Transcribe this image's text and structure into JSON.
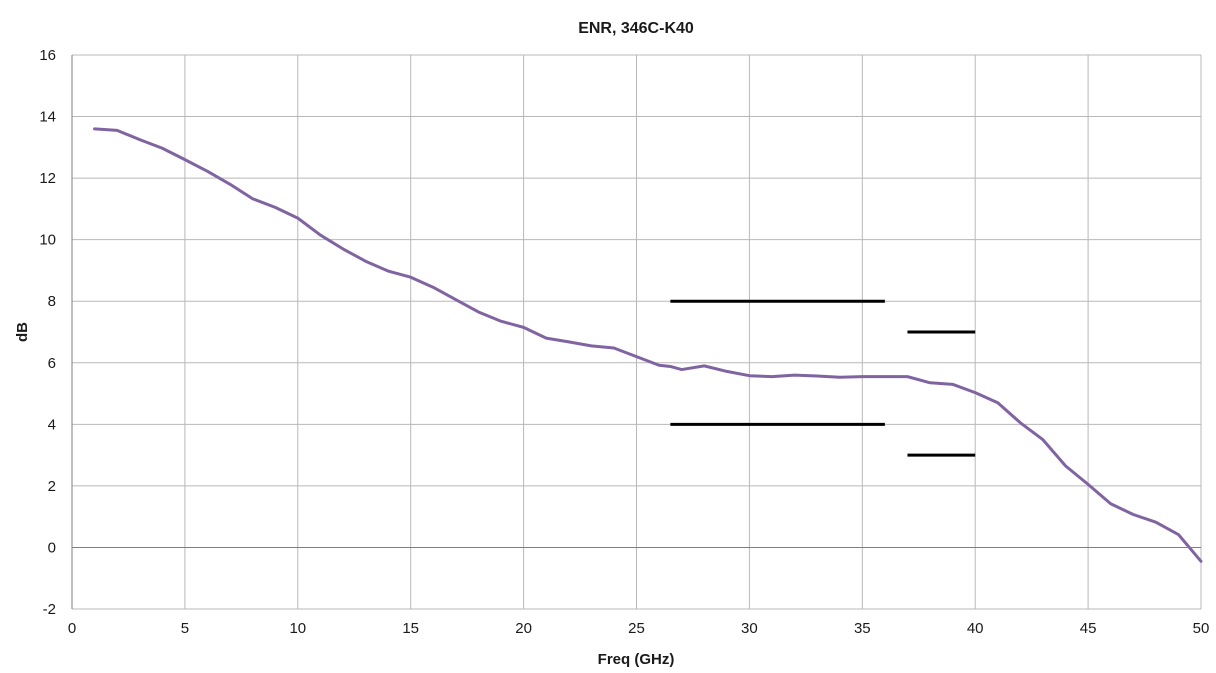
{
  "chart_data": {
    "type": "line",
    "title": "ENR, 346C-K40",
    "xlabel": "Freq (GHz)",
    "ylabel": "dB",
    "xlim": [
      0,
      50
    ],
    "ylim": [
      -2,
      16
    ],
    "x_ticks": [
      0,
      5,
      10,
      15,
      20,
      25,
      30,
      35,
      40,
      45,
      50
    ],
    "y_ticks": [
      -2,
      0,
      2,
      4,
      6,
      8,
      10,
      12,
      14,
      16
    ],
    "grid": true,
    "legend": "none",
    "series": [
      {
        "color": "#8064a2",
        "x": [
          1,
          2,
          3,
          4,
          5,
          6,
          7,
          8,
          9,
          10,
          11,
          12,
          13,
          14,
          15,
          16,
          17,
          18,
          19,
          20,
          21,
          22,
          23,
          24,
          25,
          26,
          26.5,
          27,
          28,
          29,
          30,
          31,
          32,
          33,
          34,
          35,
          36,
          37,
          38,
          39,
          40,
          41,
          42,
          43,
          44,
          45,
          46,
          47,
          48,
          49,
          50
        ],
        "y": [
          13.6,
          13.55,
          13.25,
          12.97,
          12.6,
          12.22,
          11.8,
          11.33,
          11.05,
          10.7,
          10.15,
          9.7,
          9.3,
          8.98,
          8.78,
          8.45,
          8.05,
          7.65,
          7.35,
          7.15,
          6.8,
          6.68,
          6.55,
          6.48,
          6.2,
          5.92,
          5.88,
          5.78,
          5.9,
          5.72,
          5.58,
          5.55,
          5.6,
          5.57,
          5.53,
          5.55,
          5.55,
          5.55,
          5.35,
          5.3,
          5.03,
          4.7,
          4.05,
          3.5,
          2.65,
          2.05,
          1.42,
          1.07,
          0.82,
          0.42,
          -0.45
        ]
      }
    ],
    "spec_lines": [
      {
        "color": "#000000",
        "x": [
          26.5,
          36
        ],
        "y": [
          8,
          8
        ]
      },
      {
        "color": "#000000",
        "x": [
          26.5,
          36
        ],
        "y": [
          4,
          4
        ]
      },
      {
        "color": "#000000",
        "x": [
          37,
          40
        ],
        "y": [
          7,
          7
        ]
      },
      {
        "color": "#000000",
        "x": [
          37,
          40
        ],
        "y": [
          3,
          3
        ]
      }
    ]
  }
}
